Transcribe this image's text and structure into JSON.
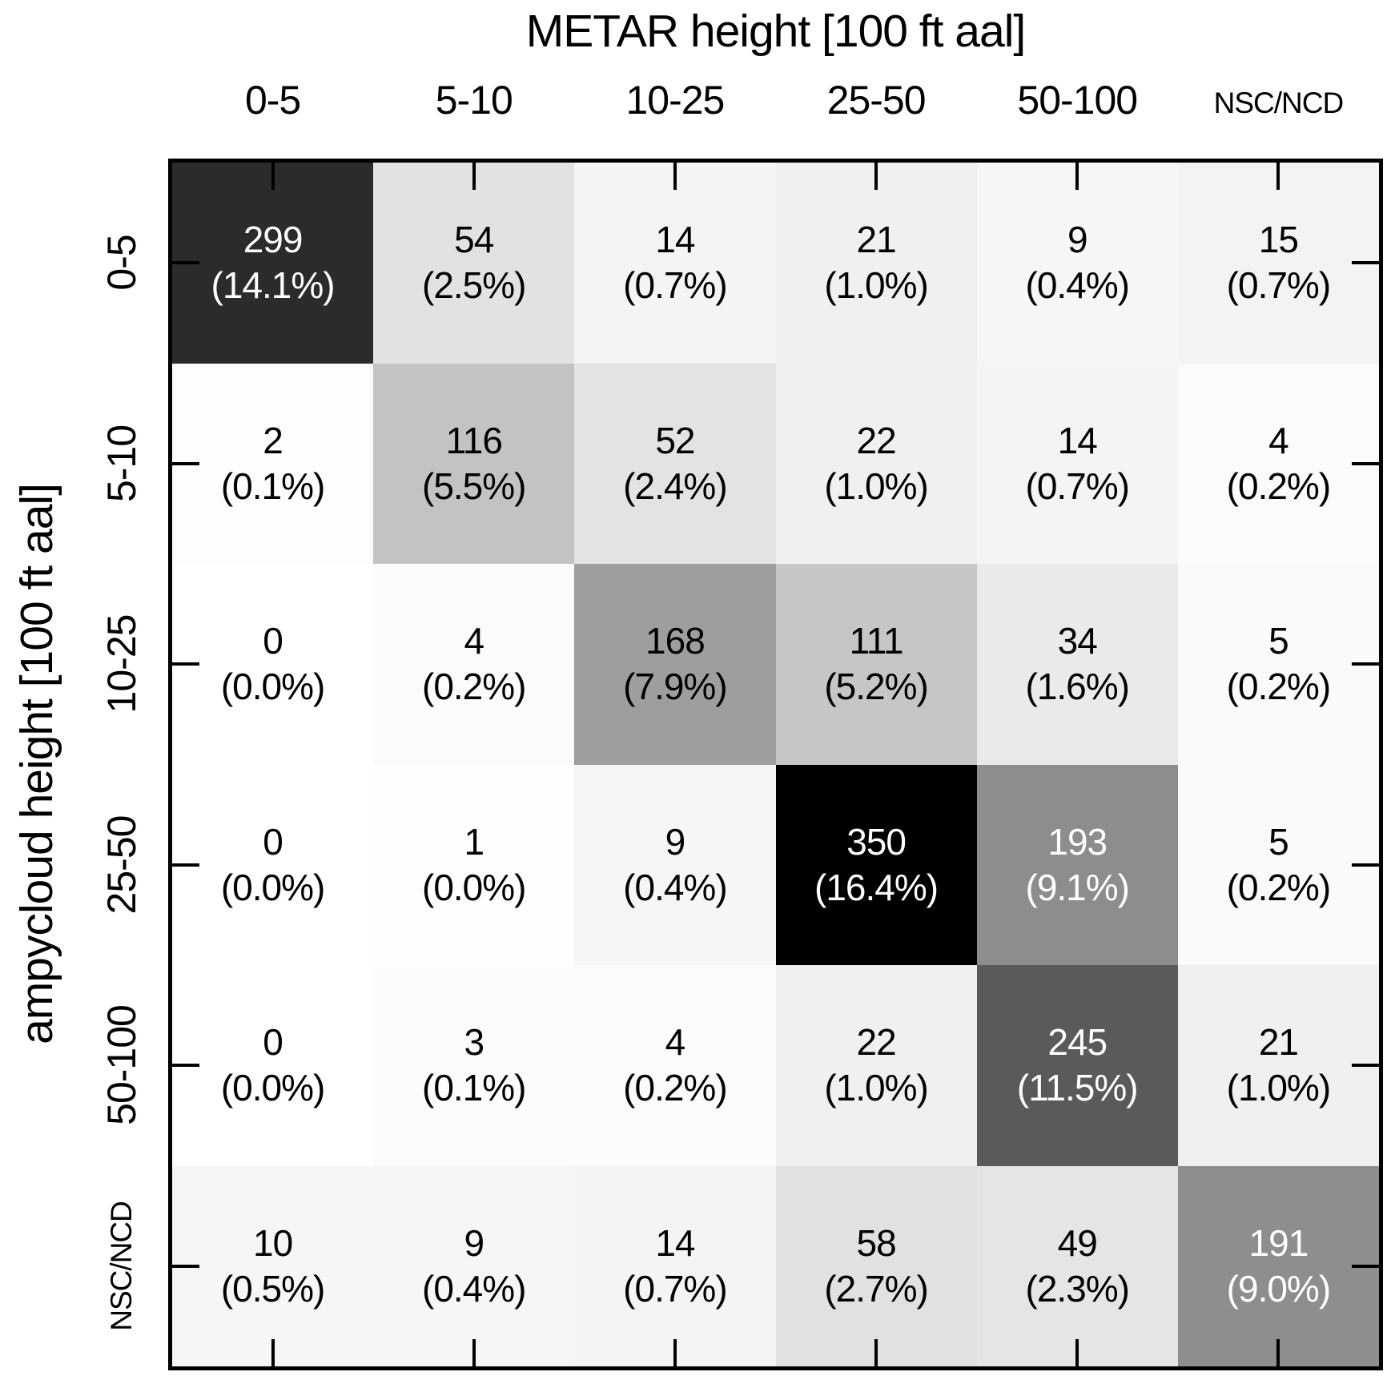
{
  "figure": {
    "background": "#ffffff",
    "frame_color": "#000000"
  },
  "chart_data": {
    "type": "heatmap",
    "title": "METAR height [100 ft aal]",
    "xlabel": "METAR height [100 ft aal]",
    "ylabel": "ampycloud height [100 ft aal]",
    "x_categories": [
      "0-5",
      "5-10",
      "10-25",
      "25-50",
      "50-100",
      "NSC/NCD"
    ],
    "y_categories": [
      "0-5",
      "5-10",
      "10-25",
      "25-50",
      "50-100",
      "NSC/NCD"
    ],
    "colormap": "Greys",
    "grid": false,
    "legend_position": "none",
    "counts": [
      [
        299,
        54,
        14,
        21,
        9,
        15
      ],
      [
        2,
        116,
        52,
        22,
        14,
        4
      ],
      [
        0,
        4,
        168,
        111,
        34,
        5
      ],
      [
        0,
        1,
        9,
        350,
        193,
        5
      ],
      [
        0,
        3,
        4,
        22,
        245,
        21
      ],
      [
        10,
        9,
        14,
        58,
        49,
        191
      ]
    ],
    "percent_labels": [
      [
        "(14.1%)",
        "(2.5%)",
        "(0.7%)",
        "(1.0%)",
        "(0.4%)",
        "(0.7%)"
      ],
      [
        "(0.1%)",
        "(5.5%)",
        "(2.4%)",
        "(1.0%)",
        "(0.7%)",
        "(0.2%)"
      ],
      [
        "(0.0%)",
        "(0.2%)",
        "(7.9%)",
        "(5.2%)",
        "(1.6%)",
        "(0.2%)"
      ],
      [
        "(0.0%)",
        "(0.0%)",
        "(0.4%)",
        "(16.4%)",
        "(9.1%)",
        "(0.2%)"
      ],
      [
        "(0.0%)",
        "(0.1%)",
        "(0.2%)",
        "(1.0%)",
        "(11.5%)",
        "(1.0%)"
      ],
      [
        "(0.5%)",
        "(0.4%)",
        "(0.7%)",
        "(2.7%)",
        "(2.3%)",
        "(9.0%)"
      ]
    ],
    "cell_colors": [
      [
        "#2b2b2b",
        "#e2e2e2",
        "#f4f4f4",
        "#f0f0f0",
        "#f6f6f6",
        "#f3f3f3"
      ],
      [
        "#fdfdfd",
        "#c3c3c3",
        "#e3e3e3",
        "#f0f0f0",
        "#f4f4f4",
        "#fbfbfb"
      ],
      [
        "#ffffff",
        "#fbfbfb",
        "#9e9e9e",
        "#c6c6c6",
        "#eaeaea",
        "#fafafa"
      ],
      [
        "#ffffff",
        "#fefefe",
        "#f6f6f6",
        "#000000",
        "#8d8d8d",
        "#fafafa"
      ],
      [
        "#ffffff",
        "#fcfcfc",
        "#fbfbfb",
        "#f0f0f0",
        "#5a5a5a",
        "#f0f0f0"
      ],
      [
        "#f6f6f6",
        "#f6f6f6",
        "#f4f4f4",
        "#e1e1e1",
        "#e5e5e5",
        "#8e8e8e"
      ]
    ],
    "cell_text_colors": [
      [
        "#ffffff",
        "#000000",
        "#000000",
        "#000000",
        "#000000",
        "#000000"
      ],
      [
        "#000000",
        "#000000",
        "#000000",
        "#000000",
        "#000000",
        "#000000"
      ],
      [
        "#000000",
        "#000000",
        "#000000",
        "#000000",
        "#000000",
        "#000000"
      ],
      [
        "#000000",
        "#000000",
        "#000000",
        "#ffffff",
        "#ffffff",
        "#000000"
      ],
      [
        "#000000",
        "#000000",
        "#000000",
        "#000000",
        "#ffffff",
        "#000000"
      ],
      [
        "#000000",
        "#000000",
        "#000000",
        "#000000",
        "#000000",
        "#ffffff"
      ]
    ]
  }
}
